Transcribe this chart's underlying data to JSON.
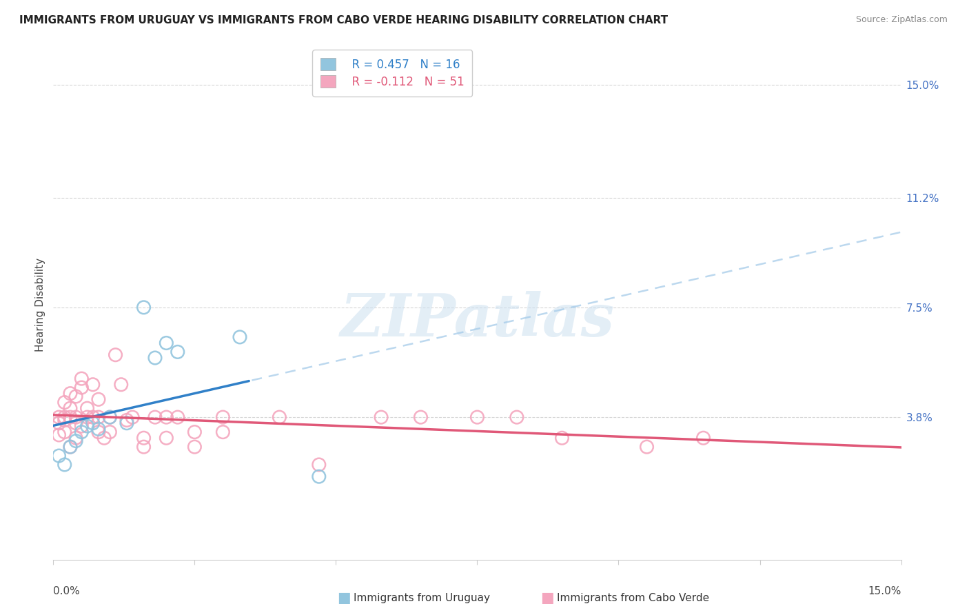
{
  "title": "IMMIGRANTS FROM URUGUAY VS IMMIGRANTS FROM CABO VERDE HEARING DISABILITY CORRELATION CHART",
  "source": "Source: ZipAtlas.com",
  "ylabel": "Hearing Disability",
  "y_ticks": [
    0.038,
    0.075,
    0.112,
    0.15
  ],
  "y_tick_labels": [
    "3.8%",
    "7.5%",
    "11.2%",
    "15.0%"
  ],
  "xlim": [
    0.0,
    0.15
  ],
  "ylim": [
    -0.01,
    0.162
  ],
  "color_uruguay": "#92c5de",
  "color_cabo_verde": "#f4a6be",
  "color_line_uruguay": "#3080c8",
  "color_line_cabo_verde": "#e05878",
  "watermark_color": "#cce0f0",
  "legend_label1": "Immigrants from Uruguay",
  "legend_label2": "Immigrants from Cabo Verde",
  "legend_R1": "R = 0.457",
  "legend_N1": "N = 16",
  "legend_R2": "R = -0.112",
  "legend_N2": "N = 51",
  "uruguay_points": [
    [
      0.001,
      0.025
    ],
    [
      0.002,
      0.022
    ],
    [
      0.003,
      0.028
    ],
    [
      0.004,
      0.03
    ],
    [
      0.005,
      0.033
    ],
    [
      0.006,
      0.035
    ],
    [
      0.007,
      0.036
    ],
    [
      0.008,
      0.034
    ],
    [
      0.01,
      0.038
    ],
    [
      0.013,
      0.036
    ],
    [
      0.016,
      0.075
    ],
    [
      0.018,
      0.058
    ],
    [
      0.02,
      0.063
    ],
    [
      0.022,
      0.06
    ],
    [
      0.033,
      0.065
    ],
    [
      0.047,
      0.018
    ]
  ],
  "cabo_verde_points": [
    [
      0.001,
      0.032
    ],
    [
      0.001,
      0.036
    ],
    [
      0.001,
      0.038
    ],
    [
      0.002,
      0.038
    ],
    [
      0.002,
      0.037
    ],
    [
      0.002,
      0.033
    ],
    [
      0.002,
      0.043
    ],
    [
      0.003,
      0.046
    ],
    [
      0.003,
      0.038
    ],
    [
      0.003,
      0.041
    ],
    [
      0.003,
      0.028
    ],
    [
      0.004,
      0.045
    ],
    [
      0.004,
      0.038
    ],
    [
      0.004,
      0.036
    ],
    [
      0.004,
      0.031
    ],
    [
      0.005,
      0.048
    ],
    [
      0.005,
      0.051
    ],
    [
      0.005,
      0.035
    ],
    [
      0.006,
      0.038
    ],
    [
      0.006,
      0.041
    ],
    [
      0.007,
      0.049
    ],
    [
      0.007,
      0.038
    ],
    [
      0.008,
      0.033
    ],
    [
      0.008,
      0.038
    ],
    [
      0.008,
      0.044
    ],
    [
      0.009,
      0.031
    ],
    [
      0.01,
      0.038
    ],
    [
      0.01,
      0.033
    ],
    [
      0.011,
      0.059
    ],
    [
      0.012,
      0.049
    ],
    [
      0.013,
      0.037
    ],
    [
      0.014,
      0.038
    ],
    [
      0.016,
      0.031
    ],
    [
      0.016,
      0.028
    ],
    [
      0.018,
      0.038
    ],
    [
      0.02,
      0.038
    ],
    [
      0.02,
      0.031
    ],
    [
      0.022,
      0.038
    ],
    [
      0.025,
      0.033
    ],
    [
      0.025,
      0.028
    ],
    [
      0.03,
      0.038
    ],
    [
      0.03,
      0.033
    ],
    [
      0.04,
      0.038
    ],
    [
      0.047,
      0.022
    ],
    [
      0.058,
      0.038
    ],
    [
      0.065,
      0.038
    ],
    [
      0.075,
      0.038
    ],
    [
      0.082,
      0.038
    ],
    [
      0.09,
      0.031
    ],
    [
      0.105,
      0.028
    ],
    [
      0.115,
      0.031
    ]
  ],
  "grid_color": "#cccccc",
  "background": "#ffffff"
}
